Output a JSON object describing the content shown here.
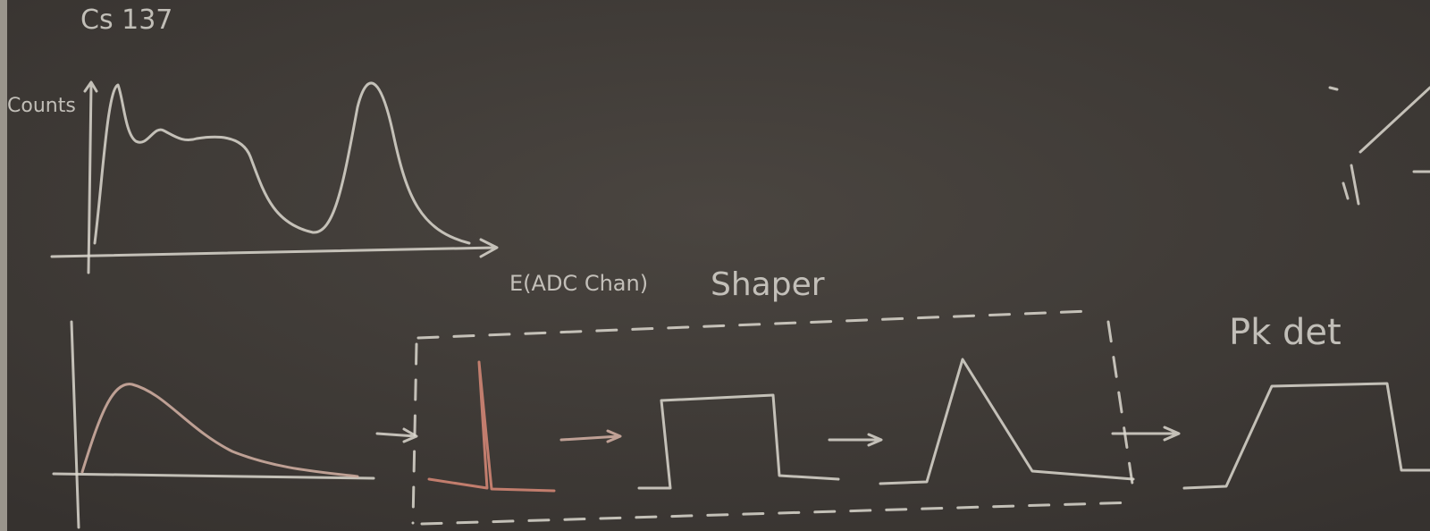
{
  "labels": {
    "source": "Cs 137",
    "y_axis": "Counts",
    "x_axis": "E(ADC Chan)",
    "shaper": "Shaper",
    "peak_detector": "Pk det"
  }
}
